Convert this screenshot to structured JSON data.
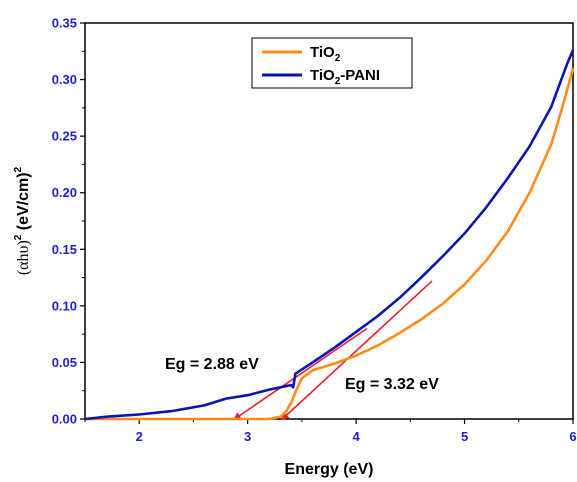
{
  "chart_data": {
    "type": "line",
    "title": "",
    "xlabel": "Energy (eV)",
    "ylabel_parts": {
      "prefix": "(αhυ)",
      "sup1": "2",
      "mid": " (eV/cm)",
      "sup2": "2"
    },
    "xlim": [
      1.5,
      6.0
    ],
    "ylim": [
      0.0,
      0.35
    ],
    "xticks": [
      "2",
      "3",
      "4",
      "5",
      "6"
    ],
    "yticks": [
      "0.00",
      "0.05",
      "0.10",
      "0.15",
      "0.20",
      "0.25",
      "0.30",
      "0.35"
    ],
    "grid": false,
    "legend_position": "top-center",
    "series": [
      {
        "name": "TiO2",
        "legend_main": "TiO",
        "legend_sub": "2",
        "legend_tail": "",
        "color": "#ff8c1a",
        "x": [
          1.5,
          2.0,
          2.5,
          3.0,
          3.2,
          3.3,
          3.35,
          3.4,
          3.45,
          3.5,
          3.6,
          3.8,
          4.0,
          4.2,
          4.4,
          4.6,
          4.8,
          5.0,
          5.2,
          5.4,
          5.6,
          5.8,
          5.9,
          6.0
        ],
        "y": [
          0.0,
          0.0,
          0.0,
          0.0,
          0.0,
          0.002,
          0.006,
          0.014,
          0.026,
          0.036,
          0.043,
          0.049,
          0.056,
          0.065,
          0.076,
          0.088,
          0.102,
          0.119,
          0.14,
          0.166,
          0.2,
          0.243,
          0.275,
          0.31
        ]
      },
      {
        "name": "TiO2-PANI",
        "legend_main": "TiO",
        "legend_sub": "2",
        "legend_tail": "-PANI",
        "color": "#0a14b4",
        "x": [
          1.5,
          1.7,
          2.0,
          2.3,
          2.6,
          2.8,
          3.0,
          3.2,
          3.35,
          3.4,
          3.42,
          3.44,
          3.6,
          3.8,
          4.0,
          4.2,
          4.4,
          4.6,
          4.8,
          5.0,
          5.2,
          5.4,
          5.6,
          5.8,
          5.95,
          6.0
        ],
        "y": [
          0.0,
          0.002,
          0.004,
          0.007,
          0.012,
          0.018,
          0.021,
          0.026,
          0.029,
          0.03,
          0.028,
          0.04,
          0.05,
          0.063,
          0.077,
          0.091,
          0.107,
          0.125,
          0.144,
          0.164,
          0.187,
          0.213,
          0.241,
          0.276,
          0.315,
          0.326
        ]
      }
    ],
    "annotations": [
      {
        "text": "Eg = 2.88 eV",
        "x": 2.58,
        "y": 0.052
      },
      {
        "text": "Eg = 3.32 eV",
        "x": 3.98,
        "y": 0.031
      }
    ],
    "tangent_lines": [
      {
        "color": "#e8202a",
        "x1": 2.88,
        "y1": 0.0,
        "x2": 4.1,
        "y2": 0.08
      },
      {
        "color": "#e8202a",
        "x1": 3.32,
        "y1": 0.0,
        "x2": 4.7,
        "y2": 0.122
      }
    ]
  }
}
